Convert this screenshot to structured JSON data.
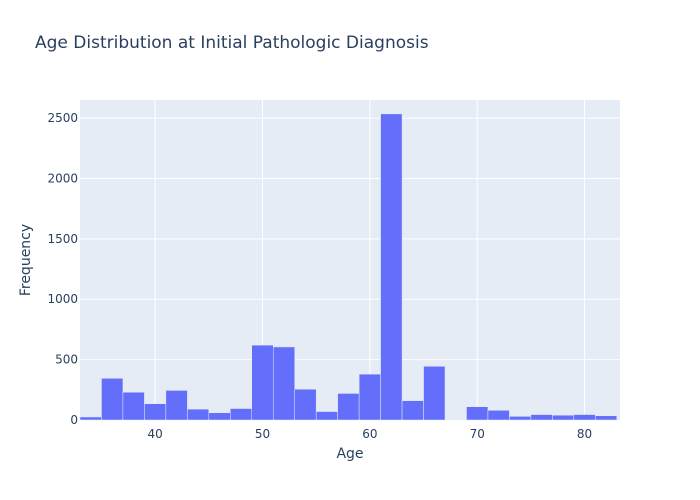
{
  "chart_data": {
    "type": "bar",
    "title": "Age Distribution at Initial Pathologic Diagnosis",
    "xlabel": "Age",
    "ylabel": "Frequency",
    "xlim": [
      33,
      83.3
    ],
    "ylim": [
      0,
      2650
    ],
    "bin_width": 2,
    "x_ticks": [
      40,
      50,
      60,
      70,
      80
    ],
    "y_ticks": [
      0,
      500,
      1000,
      1500,
      2000,
      2500
    ],
    "bins": [
      {
        "x0": 33,
        "value": 25
      },
      {
        "x0": 35,
        "value": 345
      },
      {
        "x0": 37,
        "value": 230
      },
      {
        "x0": 39,
        "value": 135
      },
      {
        "x0": 41,
        "value": 245
      },
      {
        "x0": 43,
        "value": 90
      },
      {
        "x0": 45,
        "value": 60
      },
      {
        "x0": 47,
        "value": 95
      },
      {
        "x0": 49,
        "value": 620
      },
      {
        "x0": 51,
        "value": 605
      },
      {
        "x0": 53,
        "value": 255
      },
      {
        "x0": 55,
        "value": 70
      },
      {
        "x0": 57,
        "value": 220
      },
      {
        "x0": 59,
        "value": 380
      },
      {
        "x0": 61,
        "value": 2535
      },
      {
        "x0": 63,
        "value": 160
      },
      {
        "x0": 65,
        "value": 445
      },
      {
        "x0": 67,
        "value": 0
      },
      {
        "x0": 69,
        "value": 110
      },
      {
        "x0": 71,
        "value": 80
      },
      {
        "x0": 73,
        "value": 30
      },
      {
        "x0": 75,
        "value": 45
      },
      {
        "x0": 77,
        "value": 40
      },
      {
        "x0": 79,
        "value": 45
      },
      {
        "x0": 81,
        "value": 35
      }
    ],
    "grid": true,
    "colors": {
      "bar": "#636efa",
      "plot_bg": "#e5ecf6",
      "grid": "#ffffff",
      "text": "#2a3f5f"
    }
  }
}
